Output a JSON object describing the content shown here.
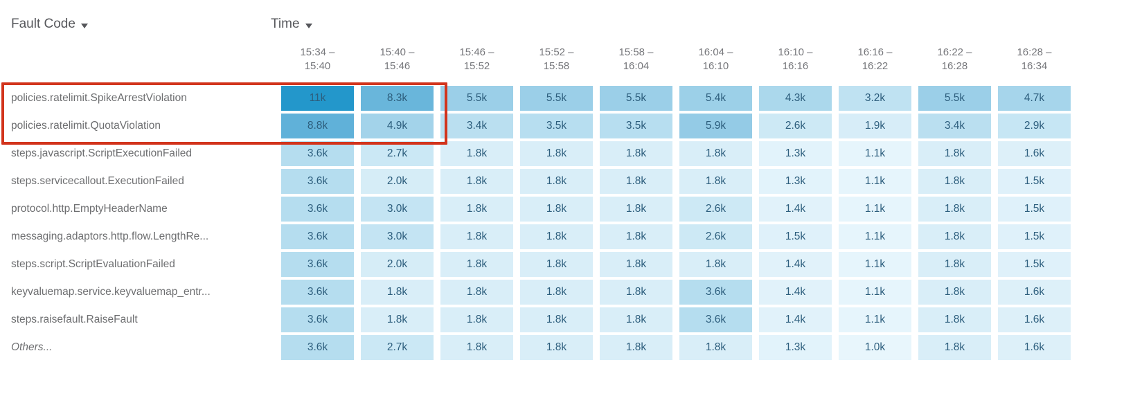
{
  "header": {
    "fault_code_label": "Fault Code",
    "time_label": "Time"
  },
  "colors": {
    "highlight_red": "#d2341c",
    "axis_header_text": "#57585c",
    "column_header_text": "#76777b",
    "row_label_text": "#6d6e70",
    "cell_text": "#2d5e7d"
  },
  "chart_data": {
    "type": "heatmap",
    "xlabel": "Time",
    "ylabel": "Fault Code",
    "legend": "none",
    "columns": [
      {
        "line1": "15:34 –",
        "line2": "15:40"
      },
      {
        "line1": "15:40 –",
        "line2": "15:46"
      },
      {
        "line1": "15:46 –",
        "line2": "15:52"
      },
      {
        "line1": "15:52 –",
        "line2": "15:58"
      },
      {
        "line1": "15:58 –",
        "line2": "16:04"
      },
      {
        "line1": "16:04 –",
        "line2": "16:10"
      },
      {
        "line1": "16:10 –",
        "line2": "16:16"
      },
      {
        "line1": "16:16 –",
        "line2": "16:22"
      },
      {
        "line1": "16:22 –",
        "line2": "16:28"
      },
      {
        "line1": "16:28 –",
        "line2": "16:34"
      }
    ],
    "rows": [
      {
        "label": "policies.ratelimit.SpikeArrestViolation",
        "italic": false
      },
      {
        "label": "policies.ratelimit.QuotaViolation",
        "italic": false
      },
      {
        "label": "steps.javascript.ScriptExecutionFailed",
        "italic": false
      },
      {
        "label": "steps.servicecallout.ExecutionFailed",
        "italic": false
      },
      {
        "label": "protocol.http.EmptyHeaderName",
        "italic": false
      },
      {
        "label": "messaging.adaptors.http.flow.LengthRe...",
        "italic": false
      },
      {
        "label": "steps.script.ScriptEvaluationFailed",
        "italic": false
      },
      {
        "label": "keyvaluemap.service.keyvaluemap_entr...",
        "italic": false
      },
      {
        "label": "steps.raisefault.RaiseFault",
        "italic": false
      },
      {
        "label": "Others...",
        "italic": true
      }
    ],
    "cell_labels": [
      [
        "11k",
        "8.3k",
        "5.5k",
        "5.5k",
        "5.5k",
        "5.4k",
        "4.3k",
        "3.2k",
        "5.5k",
        "4.7k"
      ],
      [
        "8.8k",
        "4.9k",
        "3.4k",
        "3.5k",
        "3.5k",
        "5.9k",
        "2.6k",
        "1.9k",
        "3.4k",
        "2.9k"
      ],
      [
        "3.6k",
        "2.7k",
        "1.8k",
        "1.8k",
        "1.8k",
        "1.8k",
        "1.3k",
        "1.1k",
        "1.8k",
        "1.6k"
      ],
      [
        "3.6k",
        "2.0k",
        "1.8k",
        "1.8k",
        "1.8k",
        "1.8k",
        "1.3k",
        "1.1k",
        "1.8k",
        "1.5k"
      ],
      [
        "3.6k",
        "3.0k",
        "1.8k",
        "1.8k",
        "1.8k",
        "2.6k",
        "1.4k",
        "1.1k",
        "1.8k",
        "1.5k"
      ],
      [
        "3.6k",
        "3.0k",
        "1.8k",
        "1.8k",
        "1.8k",
        "2.6k",
        "1.5k",
        "1.1k",
        "1.8k",
        "1.5k"
      ],
      [
        "3.6k",
        "2.0k",
        "1.8k",
        "1.8k",
        "1.8k",
        "1.8k",
        "1.4k",
        "1.1k",
        "1.8k",
        "1.5k"
      ],
      [
        "3.6k",
        "1.8k",
        "1.8k",
        "1.8k",
        "1.8k",
        "3.6k",
        "1.4k",
        "1.1k",
        "1.8k",
        "1.6k"
      ],
      [
        "3.6k",
        "1.8k",
        "1.8k",
        "1.8k",
        "1.8k",
        "3.6k",
        "1.4k",
        "1.1k",
        "1.8k",
        "1.6k"
      ],
      [
        "3.6k",
        "2.7k",
        "1.8k",
        "1.8k",
        "1.8k",
        "1.8k",
        "1.3k",
        "1.0k",
        "1.8k",
        "1.6k"
      ]
    ],
    "values_k": [
      [
        11,
        8.3,
        5.5,
        5.5,
        5.5,
        5.4,
        4.3,
        3.2,
        5.5,
        4.7
      ],
      [
        8.8,
        4.9,
        3.4,
        3.5,
        3.5,
        5.9,
        2.6,
        1.9,
        3.4,
        2.9
      ],
      [
        3.6,
        2.7,
        1.8,
        1.8,
        1.8,
        1.8,
        1.3,
        1.1,
        1.8,
        1.6
      ],
      [
        3.6,
        2.0,
        1.8,
        1.8,
        1.8,
        1.8,
        1.3,
        1.1,
        1.8,
        1.5
      ],
      [
        3.6,
        3.0,
        1.8,
        1.8,
        1.8,
        2.6,
        1.4,
        1.1,
        1.8,
        1.5
      ],
      [
        3.6,
        3.0,
        1.8,
        1.8,
        1.8,
        2.6,
        1.5,
        1.1,
        1.8,
        1.5
      ],
      [
        3.6,
        2.0,
        1.8,
        1.8,
        1.8,
        1.8,
        1.4,
        1.1,
        1.8,
        1.5
      ],
      [
        3.6,
        1.8,
        1.8,
        1.8,
        1.8,
        3.6,
        1.4,
        1.1,
        1.8,
        1.6
      ],
      [
        3.6,
        1.8,
        1.8,
        1.8,
        1.8,
        3.6,
        1.4,
        1.1,
        1.8,
        1.6
      ],
      [
        3.6,
        2.7,
        1.8,
        1.8,
        1.8,
        1.8,
        1.3,
        1.0,
        1.8,
        1.6
      ]
    ],
    "color_scale": {
      "stops": [
        [
          1.0,
          "#e8f6fc"
        ],
        [
          1.8,
          "#d9eef8"
        ],
        [
          2.7,
          "#cbe8f5"
        ],
        [
          3.6,
          "#b5ddef"
        ],
        [
          5.5,
          "#9bcfe8"
        ],
        [
          8.8,
          "#60b1d9"
        ],
        [
          11,
          "#2397cb"
        ]
      ]
    },
    "highlight": {
      "row_labels": [
        "policies.ratelimit.SpikeArrestViolation",
        "policies.ratelimit.QuotaViolation"
      ],
      "column_range": [
        "15:34 – 15:40",
        "15:40 – 15:46"
      ],
      "color": "#d2341c"
    }
  }
}
